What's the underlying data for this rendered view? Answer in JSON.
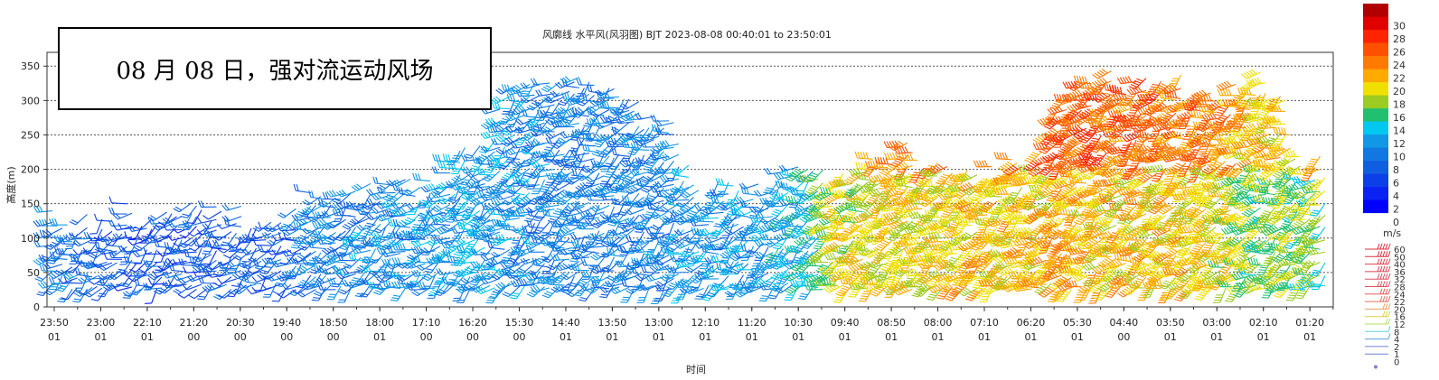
{
  "chart_data": {
    "type": "wind-barb",
    "title": "风廓线 水平风(风羽图) BJT 2023-08-08 00:40:01 to 23:50:01",
    "xlabel": "时间",
    "ylabel": "高度(m)",
    "ylim": [
      0,
      370
    ],
    "yticks": [
      0,
      50,
      100,
      150,
      200,
      250,
      300,
      350
    ],
    "grid": "horizontal dotted",
    "xticks": [
      [
        "23:50",
        "01"
      ],
      [
        "23:00",
        "01"
      ],
      [
        "22:10",
        "01"
      ],
      [
        "21:20",
        "00"
      ],
      [
        "20:30",
        "00"
      ],
      [
        "19:40",
        "00"
      ],
      [
        "18:50",
        "00"
      ],
      [
        "18:00",
        "01"
      ],
      [
        "17:10",
        "00"
      ],
      [
        "16:20",
        "00"
      ],
      [
        "15:30",
        "00"
      ],
      [
        "14:40",
        "01"
      ],
      [
        "13:50",
        "01"
      ],
      [
        "13:00",
        "01"
      ],
      [
        "12:10",
        "01"
      ],
      [
        "11:20",
        "01"
      ],
      [
        "10:30",
        "01"
      ],
      [
        "09:40",
        "01"
      ],
      [
        "08:50",
        "01"
      ],
      [
        "08:00",
        "01"
      ],
      [
        "07:10",
        "01"
      ],
      [
        "06:20",
        "01"
      ],
      [
        "05:30",
        "01"
      ],
      [
        "04:40",
        "00"
      ],
      [
        "03:50",
        "01"
      ],
      [
        "03:00",
        "01"
      ],
      [
        "02:10",
        "01"
      ],
      [
        "01:20",
        "01"
      ]
    ],
    "segments_max_height_m": [
      140,
      140,
      160,
      160,
      150,
      150,
      190,
      190,
      200,
      240,
      340,
      340,
      340,
      300,
      190,
      180,
      220,
      210,
      250,
      220,
      210,
      230,
      340,
      350,
      340,
      330,
      350,
      230
    ],
    "segments_mean_speed_ms": [
      9,
      7,
      6,
      6,
      7,
      7,
      9,
      10,
      10,
      11,
      10,
      9,
      9,
      9,
      10,
      10,
      12,
      18,
      19,
      19,
      20,
      20,
      21,
      20,
      20,
      19,
      16,
      16
    ],
    "colorbar": {
      "unit": "m/s",
      "ticks": [
        "0",
        "2",
        "4",
        "6",
        "8",
        "10",
        "12",
        "14",
        "16",
        "18",
        "20",
        "22",
        "24",
        "26",
        "28",
        "30"
      ],
      "colors": [
        "#0000ff",
        "#0a22f2",
        "#0c3fe8",
        "#0f5ee2",
        "#1078e0",
        "#1098e6",
        "#00c8f0",
        "#20c070",
        "#9ccc20",
        "#f0e000",
        "#ffaa00",
        "#ff7a00",
        "#ff5000",
        "#ff2400",
        "#e00000",
        "#b00000"
      ]
    },
    "barb_legend": [
      "60",
      "50",
      "40",
      "36",
      "32",
      "28",
      "24",
      "22",
      "20",
      "16",
      "12",
      "8",
      "4",
      "2",
      "1",
      "0"
    ]
  },
  "annotation": "08 月 08 日，强对流运动风场"
}
